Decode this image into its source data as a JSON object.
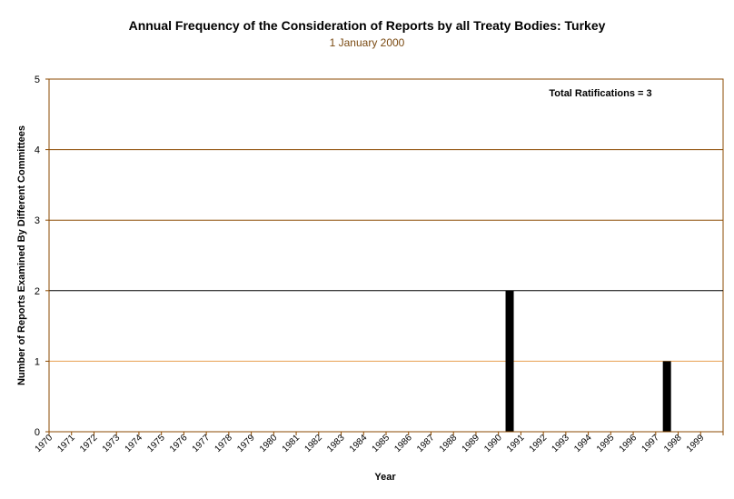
{
  "chart_data": {
    "type": "bar",
    "title": "Annual Frequency of the Consideration of Reports by all Treaty Bodies: Turkey",
    "subtitle": "1 January 2000",
    "xlabel": "Year",
    "ylabel": "Number of Reports Examined By Different Committees",
    "annotation": "Total Ratifications = 3",
    "categories": [
      "1970",
      "1971",
      "1972",
      "1973",
      "1974",
      "1975",
      "1976",
      "1977",
      "1978",
      "1979",
      "1980",
      "1981",
      "1982",
      "1983",
      "1984",
      "1985",
      "1986",
      "1987",
      "1988",
      "1989",
      "1990",
      "1991",
      "1992",
      "1993",
      "1994",
      "1995",
      "1996",
      "1997",
      "1998",
      "1999"
    ],
    "values": [
      0,
      0,
      0,
      0,
      0,
      0,
      0,
      0,
      0,
      0,
      0,
      0,
      0,
      0,
      0,
      0,
      0,
      0,
      0,
      0,
      2,
      0,
      0,
      0,
      0,
      0,
      0,
      1,
      0,
      0
    ],
    "ylim": [
      0,
      5
    ],
    "yticks": [
      0,
      1,
      2,
      3,
      4,
      5
    ],
    "grid": true,
    "colors": {
      "bar": "#000000",
      "grid_major": "#8b4a00",
      "grid_dark": "#000000",
      "grid_light": "#e8a050",
      "axis": "#8b4a00",
      "plot_border": "#8b4a00"
    }
  }
}
